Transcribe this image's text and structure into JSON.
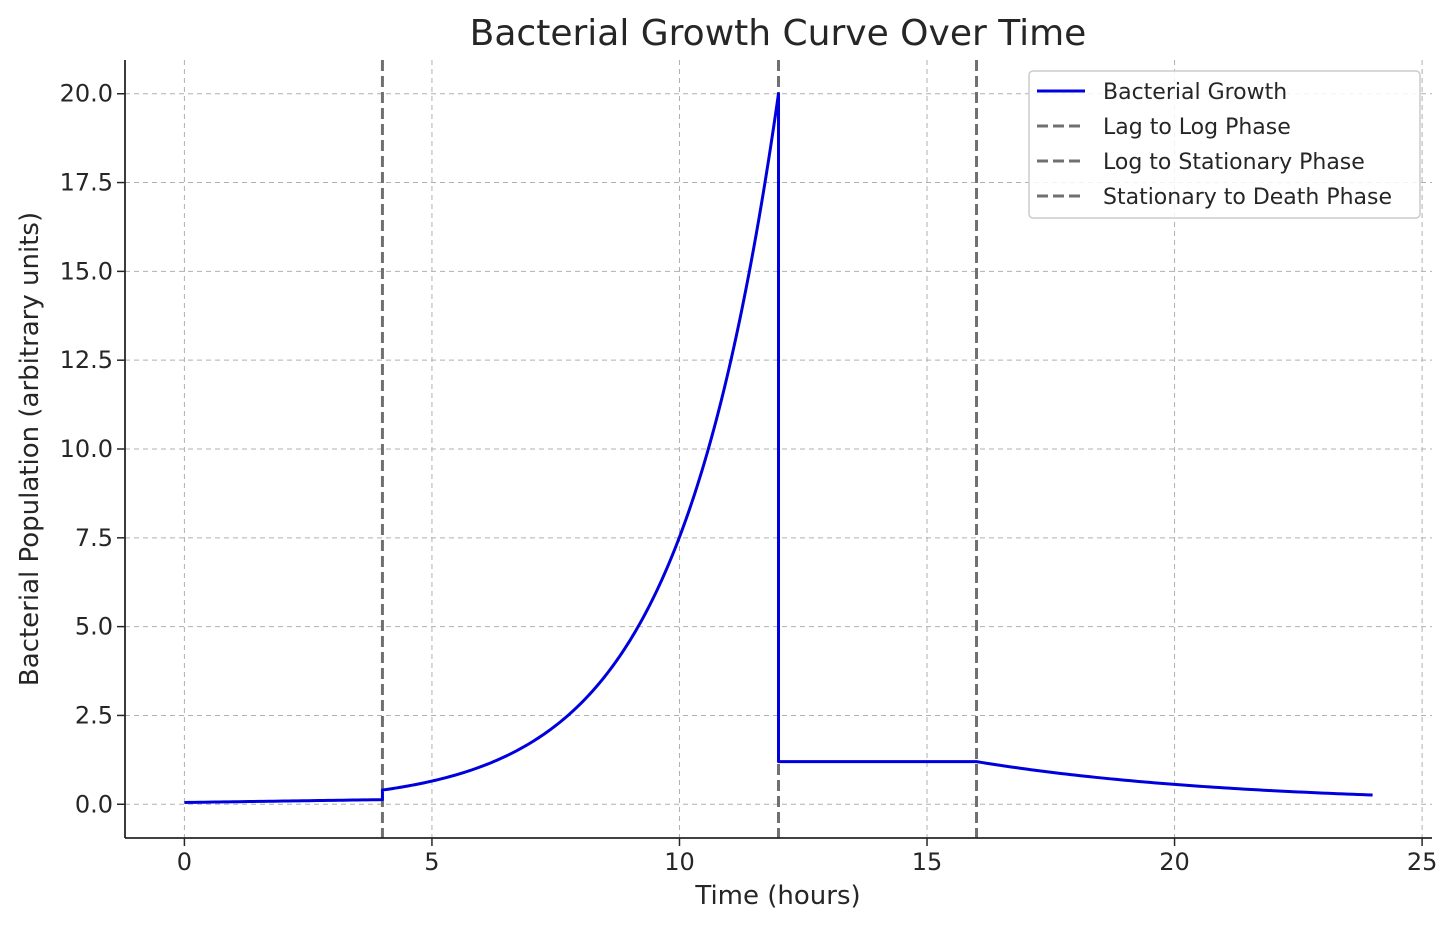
{
  "chart_data": {
    "type": "line",
    "title": "Bacterial Growth Curve Over Time",
    "xlabel": "Time (hours)",
    "ylabel": "Bacterial Population (arbitrary units)",
    "xlim": [
      -1.2,
      25.2
    ],
    "ylim": [
      -0.95,
      20.95
    ],
    "xticks": [
      0,
      5,
      10,
      15,
      20,
      25
    ],
    "xtick_labels": [
      "0",
      "5",
      "10",
      "15",
      "20",
      "25"
    ],
    "yticks": [
      0,
      2.5,
      5,
      7.5,
      10,
      12.5,
      15,
      17.5,
      20
    ],
    "ytick_labels": [
      "0.0",
      "2.5",
      "5.0",
      "7.5",
      "10.0",
      "12.5",
      "15.0",
      "17.5",
      "20.0"
    ],
    "grid": true,
    "legend_position": "top-right",
    "series": [
      {
        "name": "Bacterial Growth",
        "color": "#0000dd",
        "style": "solid",
        "x": [
          0,
          1,
          2,
          3,
          4,
          4,
          5,
          6,
          7,
          8,
          9,
          10,
          11,
          12,
          12,
          13,
          14,
          15,
          16,
          17,
          18,
          19,
          20,
          21,
          22,
          23,
          24
        ],
        "y": [
          0.05,
          0.07,
          0.09,
          0.11,
          0.13,
          0.4,
          0.65,
          1.08,
          1.8,
          2.98,
          4.95,
          8.2,
          13.6,
          20.0,
          1.2,
          1.2,
          1.2,
          1.2,
          1.2,
          1.0,
          0.86,
          0.72,
          0.6,
          0.5,
          0.41,
          0.33,
          0.26
        ]
      }
    ],
    "vlines": [
      {
        "name": "Lag to Log Phase",
        "x": 4,
        "color": "#707070",
        "style": "dashed"
      },
      {
        "name": "Log to Stationary Phase",
        "x": 12,
        "color": "#707070",
        "style": "dashed"
      },
      {
        "name": "Stationary to Death Phase",
        "x": 16,
        "color": "#707070",
        "style": "dashed"
      }
    ]
  }
}
